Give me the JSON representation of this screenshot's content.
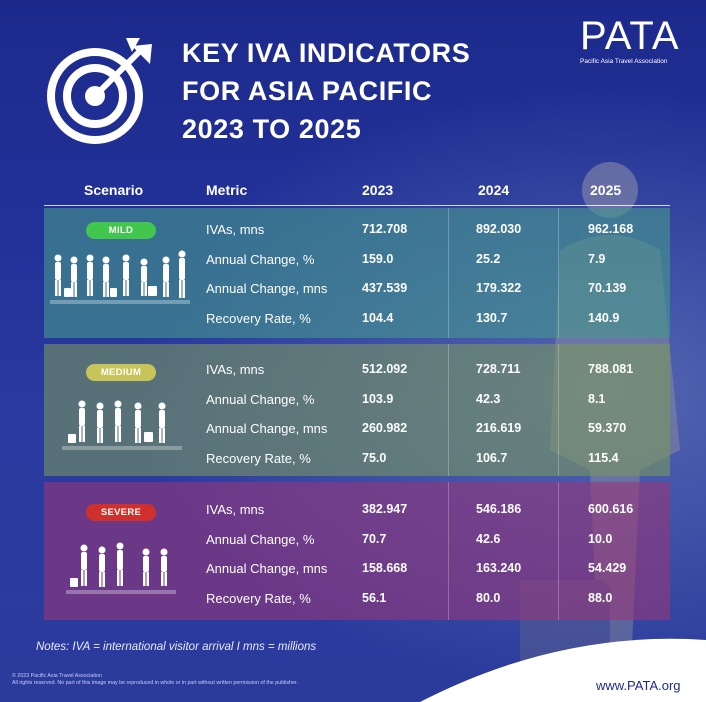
{
  "title": {
    "line1": "KEY IVA INDICATORS",
    "line2": "FOR ASIA PACIFIC",
    "line3": "2023 TO 2025"
  },
  "logo": {
    "word": "PATA",
    "subtitle": "Pacific Asia Travel Association",
    "registered": "®"
  },
  "table": {
    "headers": {
      "scenario": "Scenario",
      "metric": "Metric",
      "y1": "2023",
      "y2": "2024",
      "y3": "2025"
    },
    "scenarios": [
      {
        "label": "MILD",
        "rows": [
          {
            "metric": "IVAs, mns",
            "y1": "712.708",
            "y2": "892.030",
            "y3": "962.168"
          },
          {
            "metric": "Annual Change, %",
            "y1": "159.0",
            "y2": "25.2",
            "y3": "7.9"
          },
          {
            "metric": "Annual Change, mns",
            "y1": "437.539",
            "y2": "179.322",
            "y3": "70.139"
          },
          {
            "metric": "Recovery Rate, %",
            "y1": "104.4",
            "y2": "130.7",
            "y3": "140.9"
          }
        ]
      },
      {
        "label": "MEDIUM",
        "rows": [
          {
            "metric": "IVAs, mns",
            "y1": "512.092",
            "y2": "728.711",
            "y3": "788.081"
          },
          {
            "metric": "Annual Change, %",
            "y1": "103.9",
            "y2": "42.3",
            "y3": "8.1"
          },
          {
            "metric": "Annual Change, mns",
            "y1": "260.982",
            "y2": "216.619",
            "y3": "59.370"
          },
          {
            "metric": "Recovery Rate, %",
            "y1": "75.0",
            "y2": "106.7",
            "y3": "115.4"
          }
        ]
      },
      {
        "label": "SEVERE",
        "rows": [
          {
            "metric": "IVAs, mns",
            "y1": "382.947",
            "y2": "546.186",
            "y3": "600.616"
          },
          {
            "metric": "Annual Change, %",
            "y1": "70.7",
            "y2": "42.6",
            "y3": "10.0"
          },
          {
            "metric": "Annual Change, mns",
            "y1": "158.668",
            "y2": "163.240",
            "y3": "54.429"
          },
          {
            "metric": "Recovery Rate, %",
            "y1": "56.1",
            "y2": "80.0",
            "y3": "88.0"
          }
        ]
      }
    ]
  },
  "notes": "Notes: IVA = international visitor arrival I mns = millions",
  "copyright": {
    "line1": "© 2023 Pacific Asia Travel Association",
    "line2": "All rights reserved. No part of this image may be reproduced in whole or in part without written permission of the publisher."
  },
  "website": "www.PATA.org",
  "colors": {
    "background": "#22329a",
    "mild_pill": "#42c64e",
    "medium_pill": "#c7c45a",
    "severe_pill": "#d0302c",
    "mild_band": "#4a9a8c",
    "medium_band": "#7a9660",
    "severe_band": "#963778"
  },
  "icons": [
    "target-arrow-icon",
    "travellers-icon"
  ]
}
